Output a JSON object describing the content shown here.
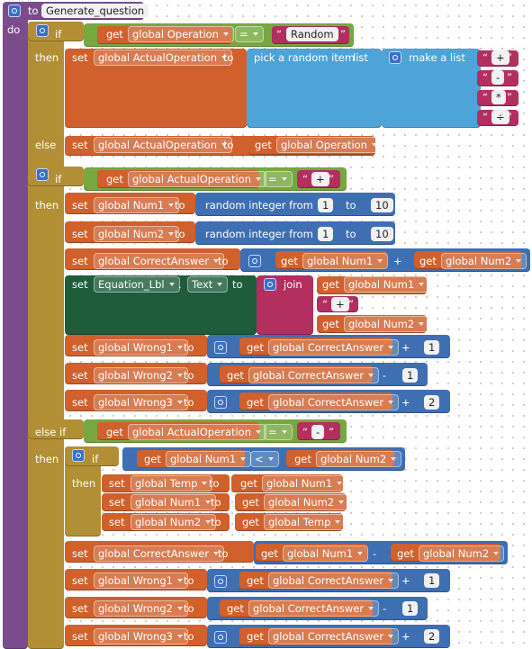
{
  "rows": [
    [
      "to",
      "Generate_question"
    ],
    [
      "do"
    ],
    [
      "if",
      "get",
      "global Operation",
      "=",
      "“",
      "Random",
      "”"
    ],
    [
      "then",
      "set",
      "global ActualOperation",
      "to",
      "pick a random item",
      "list",
      "make a list",
      "“",
      "+",
      "”"
    ],
    [
      "“",
      "-",
      "”"
    ],
    [
      "“",
      "*",
      "”"
    ],
    [
      "“",
      "÷",
      "”"
    ],
    [
      "else",
      "set",
      "global ActualOperation",
      "to",
      "get",
      "global Operation"
    ],
    [
      "if",
      "get",
      "global ActualOperation",
      "=",
      "“",
      "+",
      "”"
    ],
    [
      "then",
      "set",
      "global Num1",
      "to",
      "random integer from",
      "1",
      "to",
      "10"
    ],
    [
      "set",
      "global Num2",
      "to",
      "random integer from",
      "1",
      "to",
      "10"
    ],
    [
      "set",
      "global CorrectAnswer",
      "to",
      "get",
      "global Num1",
      "+",
      "get",
      "global Num2"
    ],
    [
      "set",
      "Equation_Lbl",
      ".",
      "Text",
      "to",
      "join",
      "get",
      "global Num1"
    ],
    [
      "“",
      "+",
      "”"
    ],
    [
      "get",
      "global Num2"
    ],
    [
      "set",
      "global Wrong1",
      "to",
      "get",
      "global CorrectAnswer",
      "+",
      "1"
    ],
    [
      "set",
      "global Wrong2",
      "to",
      "get",
      "global CorrectAnswer",
      "-",
      "1"
    ],
    [
      "set",
      "global Wrong3",
      "to",
      "get",
      "global CorrectAnswer",
      "+",
      "2"
    ],
    [
      "else if",
      "get",
      "global ActualOperation",
      "=",
      "“",
      "-",
      "”"
    ],
    [
      "then",
      "if",
      "get",
      "global Num1",
      "<",
      "get",
      "global Num2"
    ],
    [
      "then",
      "set",
      "global Temp",
      "to",
      "get",
      "global Num1"
    ],
    [
      "set",
      "global Num1",
      "to",
      "get",
      "global Num2"
    ],
    [
      "set",
      "global Num2",
      "to",
      "get",
      "global Temp"
    ],
    [
      "set",
      "global CorrectAnswer",
      "to",
      "get",
      "global Num1",
      "-",
      "get",
      "global Num2"
    ],
    [
      "set",
      "global Wrong1",
      "to",
      "get",
      "global CorrectAnswer",
      "+",
      "1"
    ],
    [
      "set",
      "global Wrong2",
      "to",
      "get",
      "global CorrectAnswer",
      "-",
      "1"
    ],
    [
      "set",
      "global Wrong3",
      "to",
      "get",
      "global CorrectAnswer",
      "+",
      "2"
    ]
  ]
}
